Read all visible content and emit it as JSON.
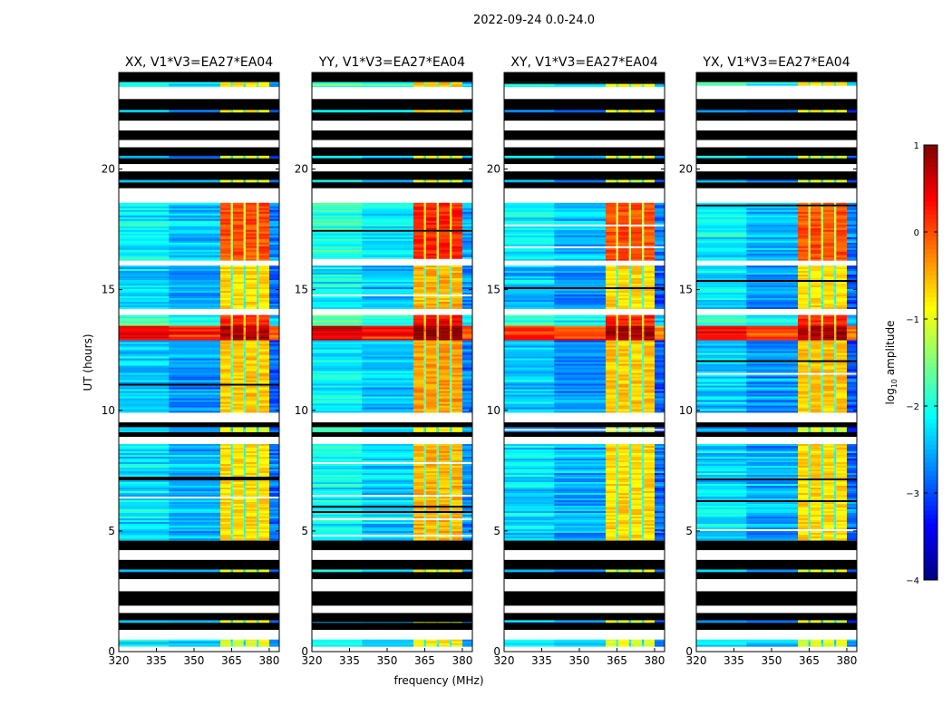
{
  "chart_data": {
    "type": "heatmap",
    "title": "2022-09-24 0.0-24.0",
    "xlabel": "frequency (MHz)",
    "ylabel": "UT (hours)",
    "xlim": [
      320,
      384
    ],
    "ylim": [
      0,
      24
    ],
    "xticks": [
      320,
      335,
      350,
      365,
      380
    ],
    "xtick_labels": [
      "320",
      "335",
      "350",
      "365",
      "380"
    ],
    "yticks": [
      0,
      5,
      10,
      15,
      20
    ],
    "ytick_labels": [
      "0",
      "5",
      "10",
      "15",
      "20"
    ],
    "panels": [
      {
        "title": "XX, V1*V3=EA27*EA04",
        "rfi_offset": 0.0,
        "bg_offset": 0.0
      },
      {
        "title": "YY, V1*V3=EA27*EA04",
        "rfi_offset": 0.2,
        "bg_offset": 0.15
      },
      {
        "title": "XY, V1*V3=EA27*EA04",
        "rfi_offset": 0.0,
        "bg_offset": -0.05
      },
      {
        "title": "YX, V1*V3=EA27*EA04",
        "rfi_offset": 0.0,
        "bg_offset": -0.05
      }
    ],
    "rfi_blocks_mhz": [
      [
        360.5,
        364.7
      ],
      [
        365.5,
        369.8
      ],
      [
        370.6,
        375.0
      ],
      [
        375.8,
        380.0
      ]
    ],
    "time_bands": [
      {
        "t0": 23.6,
        "t1": 24.0,
        "kind": "flagged"
      },
      {
        "t0": 23.4,
        "t1": 23.6,
        "kind": "data",
        "bg": -2.2,
        "rfi": -0.8
      },
      {
        "t0": 22.9,
        "t1": 23.4,
        "kind": "blank"
      },
      {
        "t0": 22.0,
        "t1": 22.9,
        "kind": "flagged"
      },
      {
        "t0": 22.35,
        "t1": 22.45,
        "kind": "data",
        "bg": -2.6,
        "rfi": -0.8
      },
      {
        "t0": 21.6,
        "t1": 22.0,
        "kind": "blank"
      },
      {
        "t0": 21.2,
        "t1": 21.6,
        "kind": "flagged"
      },
      {
        "t0": 20.9,
        "t1": 21.2,
        "kind": "blank"
      },
      {
        "t0": 20.2,
        "t1": 20.9,
        "kind": "flagged"
      },
      {
        "t0": 20.45,
        "t1": 20.55,
        "kind": "data",
        "bg": -2.6,
        "rfi": -1.0
      },
      {
        "t0": 19.9,
        "t1": 20.2,
        "kind": "blank"
      },
      {
        "t0": 19.2,
        "t1": 19.9,
        "kind": "flagged"
      },
      {
        "t0": 19.45,
        "t1": 19.55,
        "kind": "data",
        "bg": -2.6,
        "rfi": -1.0
      },
      {
        "t0": 18.6,
        "t1": 19.2,
        "kind": "blank"
      },
      {
        "t0": 16.2,
        "t1": 18.6,
        "kind": "data",
        "bg": -2.4,
        "rfi": 0.0
      },
      {
        "t0": 16.0,
        "t1": 16.2,
        "kind": "blank"
      },
      {
        "t0": 14.2,
        "t1": 16.0,
        "kind": "data",
        "bg": -2.6,
        "rfi": -0.7
      },
      {
        "t0": 13.95,
        "t1": 14.2,
        "kind": "blank"
      },
      {
        "t0": 13.5,
        "t1": 13.95,
        "kind": "data",
        "bg": -2.0,
        "rfi": 0.2
      },
      {
        "t0": 12.9,
        "t1": 13.5,
        "kind": "data",
        "bg": 0.1,
        "rfi": 0.8
      },
      {
        "t0": 9.9,
        "t1": 12.9,
        "kind": "data",
        "bg": -2.6,
        "rfi": -0.6
      },
      {
        "t0": 9.5,
        "t1": 9.9,
        "kind": "blank"
      },
      {
        "t0": 8.9,
        "t1": 9.5,
        "kind": "flagged"
      },
      {
        "t0": 9.1,
        "t1": 9.3,
        "kind": "data",
        "bg": -2.6,
        "rfi": -1.0
      },
      {
        "t0": 8.6,
        "t1": 8.9,
        "kind": "blank"
      },
      {
        "t0": 4.6,
        "t1": 8.6,
        "kind": "data",
        "bg": -2.5,
        "rfi": -0.7
      },
      {
        "t0": 4.2,
        "t1": 4.6,
        "kind": "flagged"
      },
      {
        "t0": 3.8,
        "t1": 4.2,
        "kind": "blank"
      },
      {
        "t0": 3.0,
        "t1": 3.8,
        "kind": "flagged"
      },
      {
        "t0": 3.3,
        "t1": 3.4,
        "kind": "data",
        "bg": -2.6,
        "rfi": -1.0
      },
      {
        "t0": 2.5,
        "t1": 3.0,
        "kind": "blank"
      },
      {
        "t0": 1.9,
        "t1": 2.5,
        "kind": "flagged"
      },
      {
        "t0": 1.6,
        "t1": 1.9,
        "kind": "blank"
      },
      {
        "t0": 0.9,
        "t1": 1.6,
        "kind": "flagged"
      },
      {
        "t0": 1.2,
        "t1": 1.3,
        "kind": "data",
        "bg": -2.6,
        "rfi": -1.0
      },
      {
        "t0": 0.5,
        "t1": 0.9,
        "kind": "blank"
      },
      {
        "t0": 0.2,
        "t1": 0.5,
        "kind": "data",
        "bg": -2.4,
        "rfi": -1.0
      },
      {
        "t0": 0.0,
        "t1": 0.2,
        "kind": "blank"
      }
    ],
    "colorbar": {
      "label": "log10 amplitude",
      "label_main": "log",
      "label_sub": "10",
      "label_rest": " amplitude",
      "range": [
        -4,
        1
      ],
      "ticks": [
        1,
        0,
        -1,
        -2,
        -3,
        -4
      ],
      "tick_labels": [
        "1",
        "0",
        "−1",
        "−2",
        "−3",
        "−4"
      ],
      "colormap": "jet"
    }
  }
}
